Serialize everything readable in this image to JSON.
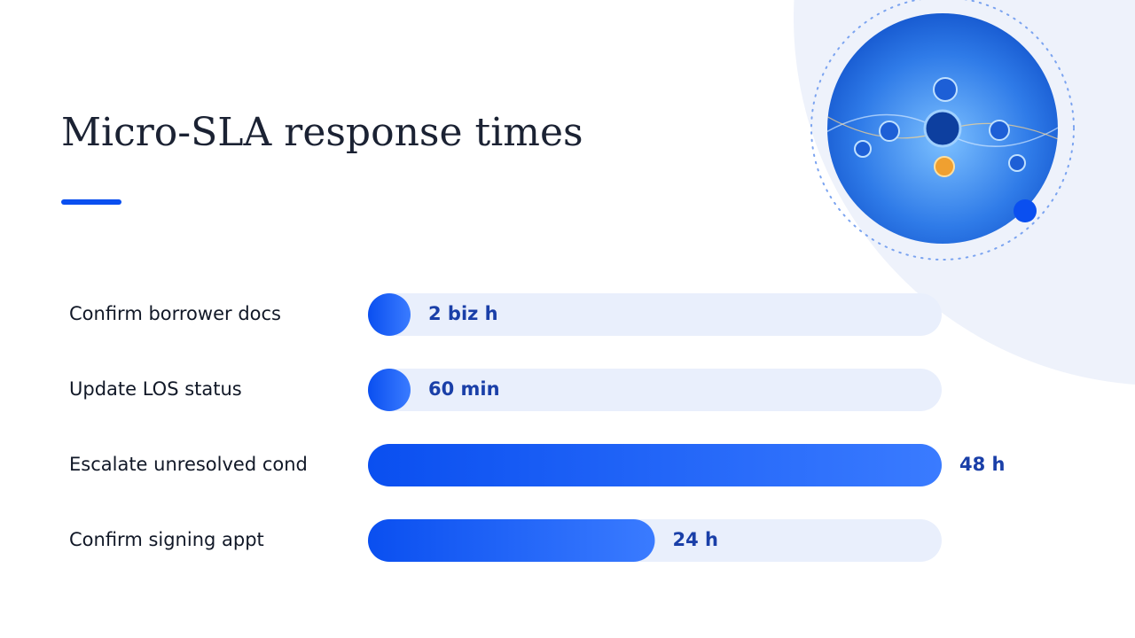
{
  "chart_data": {
    "type": "bar",
    "orientation": "horizontal",
    "title": "Micro-SLA response times",
    "categories": [
      "Confirm borrower docs",
      "Update LOS status",
      "Escalate unresolved cond",
      "Confirm signing appt"
    ],
    "values": [
      2,
      1,
      48,
      24
    ],
    "value_labels": [
      "2 biz h",
      "60 min",
      "48 h",
      "24 h"
    ],
    "xlim": [
      0,
      48
    ],
    "color": "#0a4ff0"
  }
}
